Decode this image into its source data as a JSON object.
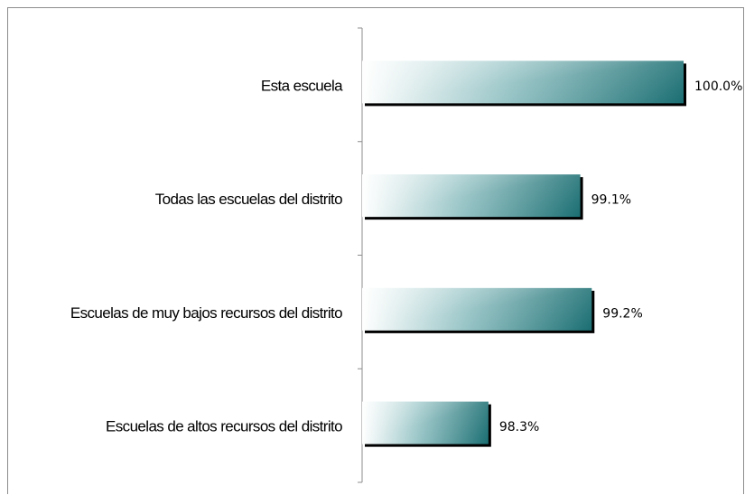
{
  "chart_data": {
    "type": "bar",
    "orientation": "horizontal",
    "categories": [
      "Esta escuela",
      "Todas las escuelas del distrito",
      "Escuelas de muy bajos recursos del distrito",
      "Escuelas de altos recursos del distrito"
    ],
    "values": [
      100.0,
      99.1,
      99.2,
      98.3
    ],
    "value_labels": [
      "100.0%",
      "99.1%",
      "99.2%",
      "98.3%"
    ],
    "xlim": [
      97.2,
      100.0
    ],
    "grid": false,
    "bar_color_light": "#ffffff",
    "bar_color_dark": "#1a6e72",
    "bar_shadow_color": "#000000"
  }
}
